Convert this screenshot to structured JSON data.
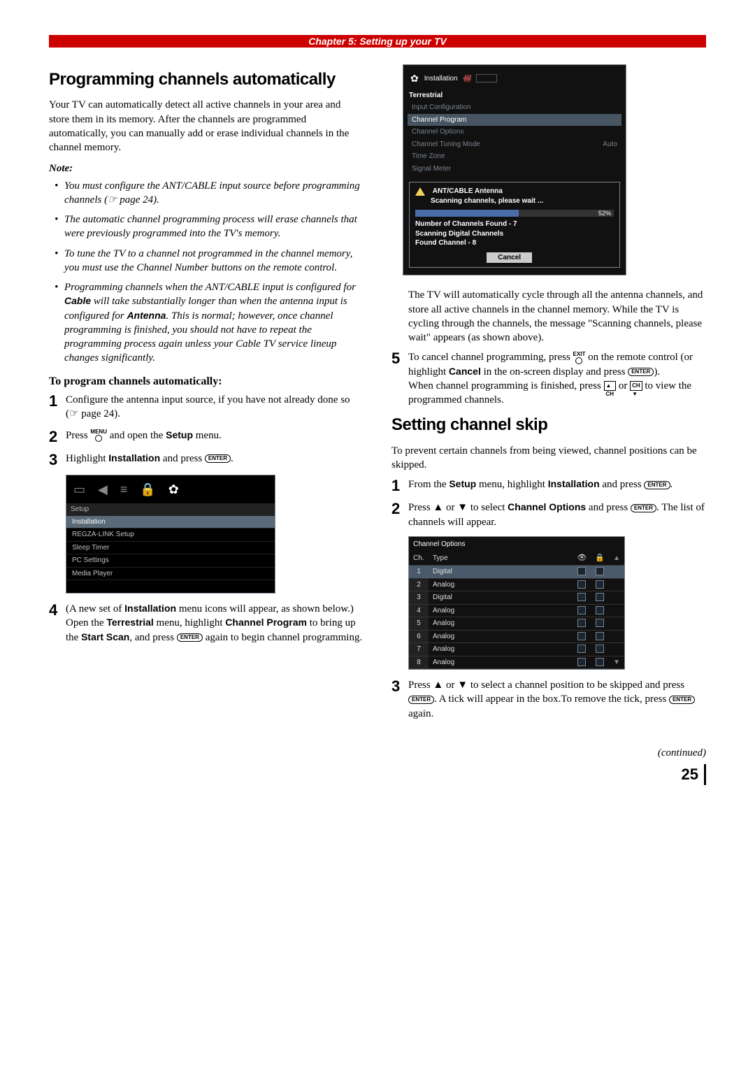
{
  "header": {
    "chapter": "Chapter 5: Setting up your TV"
  },
  "left": {
    "h2": "Programming channels automatically",
    "intro": "Your TV can automatically detect all active channels in your area and store them in its memory. After the channels are programmed automatically, you can manually add or erase individual channels in the channel memory.",
    "note_head": "Note:",
    "notes": [
      "You must configure the ANT/CABLE input source before programming channels (☞ page 24).",
      "The automatic channel programming process will erase channels that were previously programmed into the TV's memory.",
      "To tune the TV to a channel not programmed in the channel memory, you must use the Channel Number buttons on the remote control.",
      "Programming channels when the ANT/CABLE input is configured for <b class='b'>Cable</b> will take substantially longer than when the antenna input is configured for <b class='b'>Antenna</b>. This is normal; however, once channel programming is finished, you should not have to repeat the programming process again unless your Cable TV service lineup changes significantly."
    ],
    "sub": "To program channels automatically:",
    "step1": "Configure the antenna input source, if you have not already done so (☞ page 24).",
    "step2_a": "Press ",
    "step2_menu": "MENU",
    "step2_b": " and open the ",
    "step2_setup": "Setup",
    "step2_c": " menu.",
    "step3_a": "Highlight ",
    "step3_inst": "Installation",
    "step3_b": " and press ",
    "osd1": {
      "title": "Setup",
      "items": [
        "Installation",
        "REGZA-LINK Setup",
        "Sleep Timer",
        "PC Settings",
        "Media Player"
      ]
    },
    "step4": "(A new set of <b class='b'>Installation</b> menu icons will appear, as shown below.) Open the <b class='b'>Terrestrial</b> menu, highlight <b class='b'>Channel Program</b> to bring up the <b class='b'>Start Scan</b>, and press <span class='remote-btn'>ENTER</span> again to begin channel programming."
  },
  "right": {
    "osd2": {
      "title": "Installation",
      "section": "Terrestrial",
      "rows": [
        {
          "label": "Input Configuration",
          "val": ""
        },
        {
          "label": "Channel Program",
          "val": "",
          "hl": true
        },
        {
          "label": "Channel Options",
          "val": ""
        },
        {
          "label": "Channel Tuning Mode",
          "val": "Auto"
        },
        {
          "label": "Time Zone",
          "val": ""
        },
        {
          "label": "Signal Meter",
          "val": ""
        }
      ],
      "scan_title": "ANT/CABLE   Antenna",
      "scan_msg": "Scanning channels, please wait ...",
      "pct": 52,
      "pct_label": "52%",
      "found": "Number of Channels Found - 7",
      "digital": "Scanning Digital Channels",
      "foundch": "Found Channel - 8",
      "cancel": "Cancel"
    },
    "para1": "The TV will automatically cycle through all the antenna channels, and store all active channels in the channel memory. While the TV is cycling through the channels, the message \"Scanning channels, please wait\" appears (as shown above).",
    "step5": "To cancel channel programming, press <span class='remote-icon'><span>EXIT</span><span class='remote-circle'></span></span> on the remote control (or highlight <b class='b'>Cancel</b> in the on-screen display and press <span class='remote-btn'>ENTER</span>).<br>When channel programming is finished, press <span class='sq'>▲<br>CH</span> or <span class='sq'>CH<br>▼</span> to view the programmed channels.",
    "h2b": "Setting channel skip",
    "para2": "To prevent certain channels from being viewed, channel positions can be skipped.",
    "b_step1": "From the <b class='b'>Setup</b> menu, highlight <b class='b'>Installation</b> and press <span class='remote-btn'>ENTER</span>.",
    "b_step2": "Press ▲ or ▼ to select <b class='b'>Channel Options</b> and press <span class='remote-btn'>ENTER</span>. The list of channels will appear.",
    "osd3": {
      "title": "Channel Options",
      "cols": [
        "Ch.",
        "Type"
      ],
      "rows": [
        {
          "ch": "1",
          "type": "Digital",
          "hl": true
        },
        {
          "ch": "2",
          "type": "Analog"
        },
        {
          "ch": "3",
          "type": "Digital"
        },
        {
          "ch": "4",
          "type": "Analog"
        },
        {
          "ch": "5",
          "type": "Analog"
        },
        {
          "ch": "6",
          "type": "Analog"
        },
        {
          "ch": "7",
          "type": "Analog"
        },
        {
          "ch": "8",
          "type": "Analog"
        }
      ]
    },
    "b_step3": "Press ▲ or ▼ to select a channel position to be skipped and press <span class='remote-btn'>ENTER</span>. A tick will appear in the box.To remove the tick, press <span class='remote-btn'>ENTER</span> again."
  },
  "footer": {
    "continued": "(continued)",
    "page": "25"
  },
  "colors": {
    "red": "#c00",
    "osd_border": "#7a8590",
    "osd_hl": "#4a5a6a",
    "progress": "#4a6da8"
  }
}
